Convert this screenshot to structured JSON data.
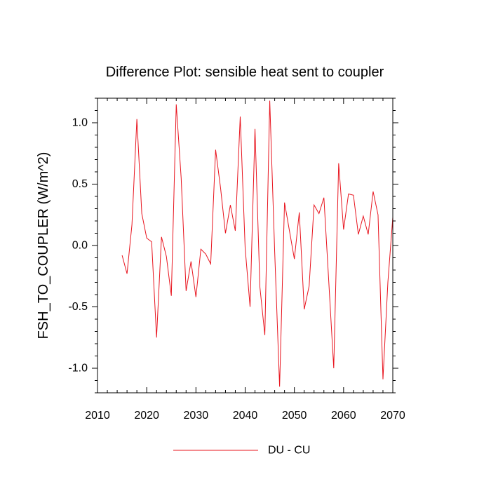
{
  "chart_data": {
    "type": "line",
    "title": "Difference Plot: sensible heat sent to coupler",
    "xlabel": "",
    "ylabel": "FSH_TO_COUPLER  (W/m^2)",
    "xlim": [
      2010,
      2070
    ],
    "ylim": [
      -1.2,
      1.2
    ],
    "xticks": [
      2010,
      2020,
      2030,
      2040,
      2050,
      2060,
      2070
    ],
    "xtick_labels": [
      "2010",
      "2020",
      "2030",
      "2040",
      "2050",
      "2060",
      "2070"
    ],
    "yticks": [
      -1.0,
      -0.5,
      0.0,
      0.5,
      1.0
    ],
    "ytick_labels": [
      "-1.0",
      "-0.5",
      "0.0",
      "0.5",
      "1.0"
    ],
    "grid": false,
    "legend_position": "bottom-center",
    "series": [
      {
        "name": "DU - CU",
        "color": "#e8141e",
        "x": [
          2015,
          2016,
          2017,
          2018,
          2019,
          2020,
          2021,
          2022,
          2023,
          2024,
          2025,
          2026,
          2027,
          2028,
          2029,
          2030,
          2031,
          2032,
          2033,
          2034,
          2035,
          2036,
          2037,
          2038,
          2039,
          2040,
          2041,
          2042,
          2043,
          2044,
          2045,
          2046,
          2047,
          2048,
          2049,
          2050,
          2051,
          2052,
          2053,
          2054,
          2055,
          2056,
          2057,
          2058,
          2059,
          2060,
          2061,
          2062,
          2063,
          2064,
          2065,
          2066,
          2067,
          2068,
          2069,
          2070
        ],
        "y": [
          -0.08,
          -0.23,
          0.17,
          1.03,
          0.26,
          0.06,
          0.03,
          -0.75,
          0.07,
          -0.09,
          -0.41,
          1.15,
          0.55,
          -0.37,
          -0.13,
          -0.42,
          -0.03,
          -0.07,
          -0.15,
          0.78,
          0.47,
          0.1,
          0.33,
          0.12,
          1.05,
          -0.02,
          -0.5,
          0.95,
          -0.34,
          -0.73,
          1.18,
          -0.05,
          -1.15,
          0.35,
          0.12,
          -0.11,
          0.27,
          -0.52,
          -0.33,
          0.33,
          0.26,
          0.39,
          -0.3,
          -1.0,
          0.67,
          0.13,
          0.42,
          0.41,
          0.09,
          0.24,
          0.09,
          0.44,
          0.25,
          -1.09,
          -0.3,
          0.23
        ]
      }
    ]
  }
}
